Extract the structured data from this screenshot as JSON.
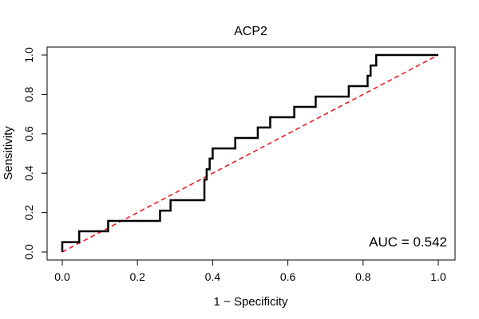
{
  "chart_data": {
    "type": "line",
    "title": "ACP2",
    "xlabel": "1 − Specificity",
    "ylabel": "Sensitivity",
    "xlim": [
      0,
      1
    ],
    "ylim": [
      0,
      1
    ],
    "x_ticks": [
      "0.0",
      "0.2",
      "0.4",
      "0.6",
      "0.8",
      "1.0"
    ],
    "y_ticks": [
      "0.0",
      "0.2",
      "0.4",
      "0.6",
      "0.8",
      "1.0"
    ],
    "grid": false,
    "annotation": "AUC = 0.542",
    "series": [
      {
        "style": "solid",
        "color": "#000000",
        "points": [
          [
            0.0,
            0.0
          ],
          [
            0.0,
            0.05
          ],
          [
            0.045,
            0.05
          ],
          [
            0.045,
            0.105
          ],
          [
            0.122,
            0.105
          ],
          [
            0.122,
            0.158
          ],
          [
            0.26,
            0.158
          ],
          [
            0.26,
            0.21
          ],
          [
            0.288,
            0.21
          ],
          [
            0.288,
            0.263
          ],
          [
            0.378,
            0.263
          ],
          [
            0.378,
            0.368
          ],
          [
            0.384,
            0.368
          ],
          [
            0.384,
            0.42
          ],
          [
            0.392,
            0.42
          ],
          [
            0.392,
            0.474
          ],
          [
            0.4,
            0.474
          ],
          [
            0.4,
            0.526
          ],
          [
            0.46,
            0.526
          ],
          [
            0.46,
            0.579
          ],
          [
            0.52,
            0.579
          ],
          [
            0.52,
            0.632
          ],
          [
            0.553,
            0.632
          ],
          [
            0.553,
            0.684
          ],
          [
            0.617,
            0.684
          ],
          [
            0.617,
            0.737
          ],
          [
            0.674,
            0.737
          ],
          [
            0.674,
            0.789
          ],
          [
            0.762,
            0.789
          ],
          [
            0.762,
            0.842
          ],
          [
            0.812,
            0.842
          ],
          [
            0.812,
            0.895
          ],
          [
            0.82,
            0.895
          ],
          [
            0.82,
            0.947
          ],
          [
            0.835,
            0.947
          ],
          [
            0.835,
            1.0
          ],
          [
            1.0,
            1.0
          ]
        ]
      },
      {
        "style": "dashed",
        "color": "#ee1c25",
        "points": [
          [
            0,
            0
          ],
          [
            1,
            1
          ]
        ]
      }
    ]
  }
}
